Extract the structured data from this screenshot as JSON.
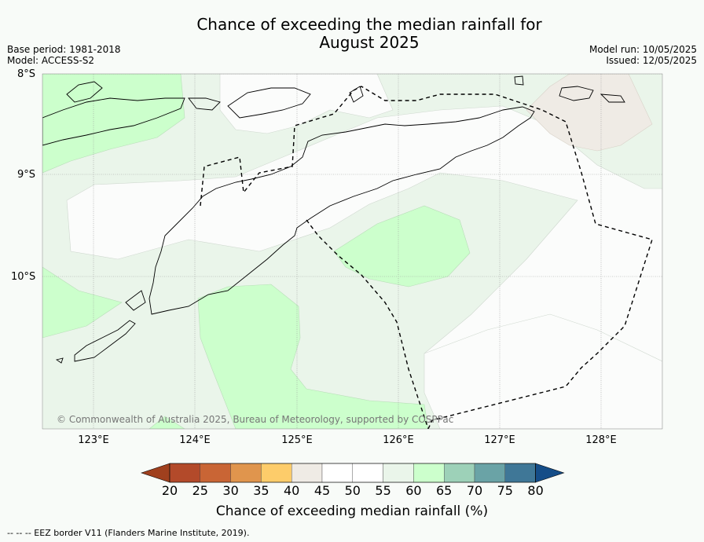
{
  "header": {
    "title_line1": "Chance of exceeding the median rainfall for",
    "title_line2": "August 2025",
    "base_period": "Base period: 1981-2018",
    "model": "Model: ACCESS-S2",
    "model_run": "Model run: 10/05/2025",
    "issued": "Issued: 12/05/2025"
  },
  "map": {
    "lat_labels": [
      "8°S",
      "9°S",
      "10°S"
    ],
    "lon_labels": [
      "123°E",
      "124°E",
      "125°E",
      "126°E",
      "127°E",
      "128°E"
    ],
    "copyright": "© Commonwealth of Australia 2025, Bureau of Meteorology, supported by COSPPac",
    "footer": "--  --  -- EEZ border V11 (Flanders Marine Institute, 2019)."
  },
  "chart_data": {
    "type": "heatmap",
    "title": "Chance of exceeding the median rainfall for August 2025",
    "colorbar": {
      "label": "Chance of exceeding median rainfall (%)",
      "ticks": [
        "20",
        "25",
        "30",
        "35",
        "40",
        "45",
        "50",
        "55",
        "60",
        "65",
        "70",
        "75",
        "80"
      ],
      "colors": [
        "#a0401e",
        "#b34a2a",
        "#c96535",
        "#e0954d",
        "#fdcc6a",
        "#efebe5",
        "#ffffff",
        "#ffffff",
        "#eaf5ea",
        "#ccffcc",
        "#9dd1b8",
        "#6aa3a6",
        "#3f7797",
        "#154d88"
      ]
    },
    "x_range_deg_E": [
      122.5,
      128.6
    ],
    "y_range_deg_S": [
      8.0,
      11.5
    ]
  }
}
